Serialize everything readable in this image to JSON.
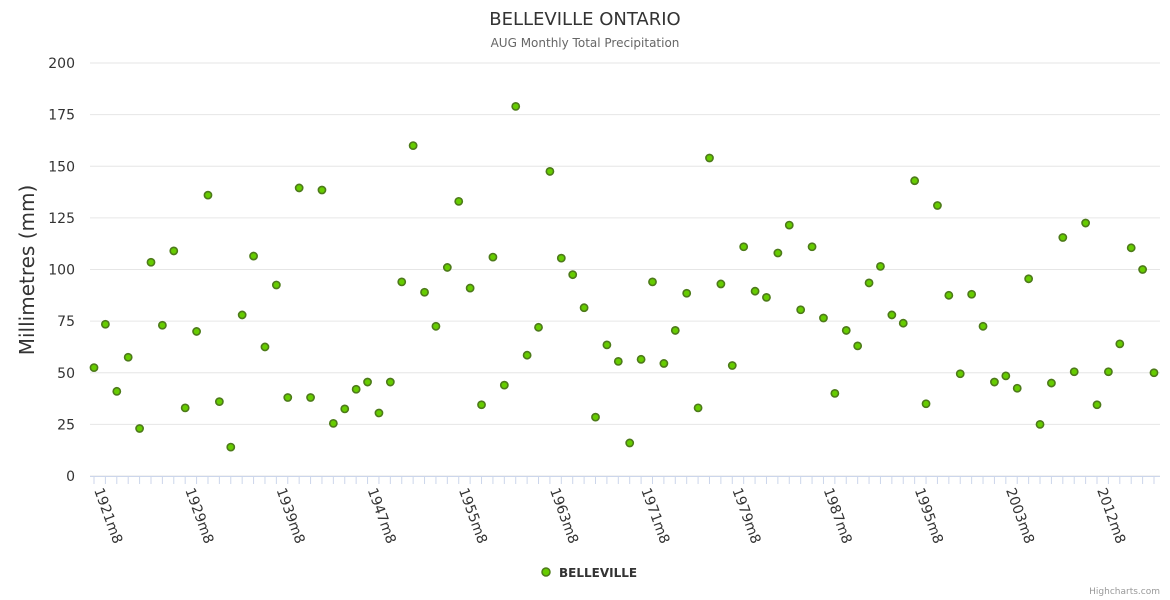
{
  "chart_data": {
    "type": "scatter",
    "title": "BELLEVILLE ONTARIO",
    "subtitle": "AUG Monthly Total Precipitation",
    "ylabel": "Millimetres (mm)",
    "xlabel": "",
    "ylim": [
      0,
      200
    ],
    "yticks": [
      "0",
      "25",
      "50",
      "75",
      "100",
      "125",
      "150",
      "175",
      "200"
    ],
    "xtick_labels": [
      {
        "label": "1921m8",
        "index": 0
      },
      {
        "label": "1929m8",
        "index": 8
      },
      {
        "label": "1939m8",
        "index": 16
      },
      {
        "label": "1947m8",
        "index": 24
      },
      {
        "label": "1955m8",
        "index": 32
      },
      {
        "label": "1963m8",
        "index": 40
      },
      {
        "label": "1971m8",
        "index": 48
      },
      {
        "label": "1979m8",
        "index": 56
      },
      {
        "label": "1987m8",
        "index": 64
      },
      {
        "label": "1995m8",
        "index": 72
      },
      {
        "label": "2003m8",
        "index": 80
      },
      {
        "label": "2012m8",
        "index": 88
      }
    ],
    "grid": true,
    "legend_position": "bottom-center",
    "series": [
      {
        "name": "BELLEVILLE",
        "color": "#66cc00",
        "stroke": "#4d7a1a",
        "values": [
          52.5,
          73.5,
          41,
          57.5,
          23,
          103.5,
          73,
          109,
          33,
          70,
          136,
          36,
          14,
          78,
          106.5,
          62.5,
          92.5,
          38,
          139.5,
          38,
          138.5,
          25.5,
          32.5,
          42,
          45.5,
          30.5,
          45.5,
          94,
          160,
          89,
          72.5,
          101,
          133,
          91,
          34.5,
          106,
          44,
          179,
          58.5,
          72,
          147.5,
          105.5,
          97.5,
          81.5,
          28.5,
          63.5,
          55.5,
          16,
          56.5,
          94,
          54.5,
          70.5,
          88.5,
          33,
          154,
          93,
          53.5,
          111,
          89.5,
          86.5,
          108,
          121.5,
          80.5,
          111,
          76.5,
          40,
          70.5,
          63,
          93.5,
          101.5,
          78,
          74,
          143,
          35,
          131,
          87.5,
          49.5,
          88,
          72.5,
          45.5,
          48.5,
          42.5,
          95.5,
          25,
          45,
          115.5,
          50.5,
          122.5,
          34.5,
          50.5,
          64,
          110.5,
          100,
          50
        ]
      }
    ]
  },
  "credits": "Highcharts.com"
}
